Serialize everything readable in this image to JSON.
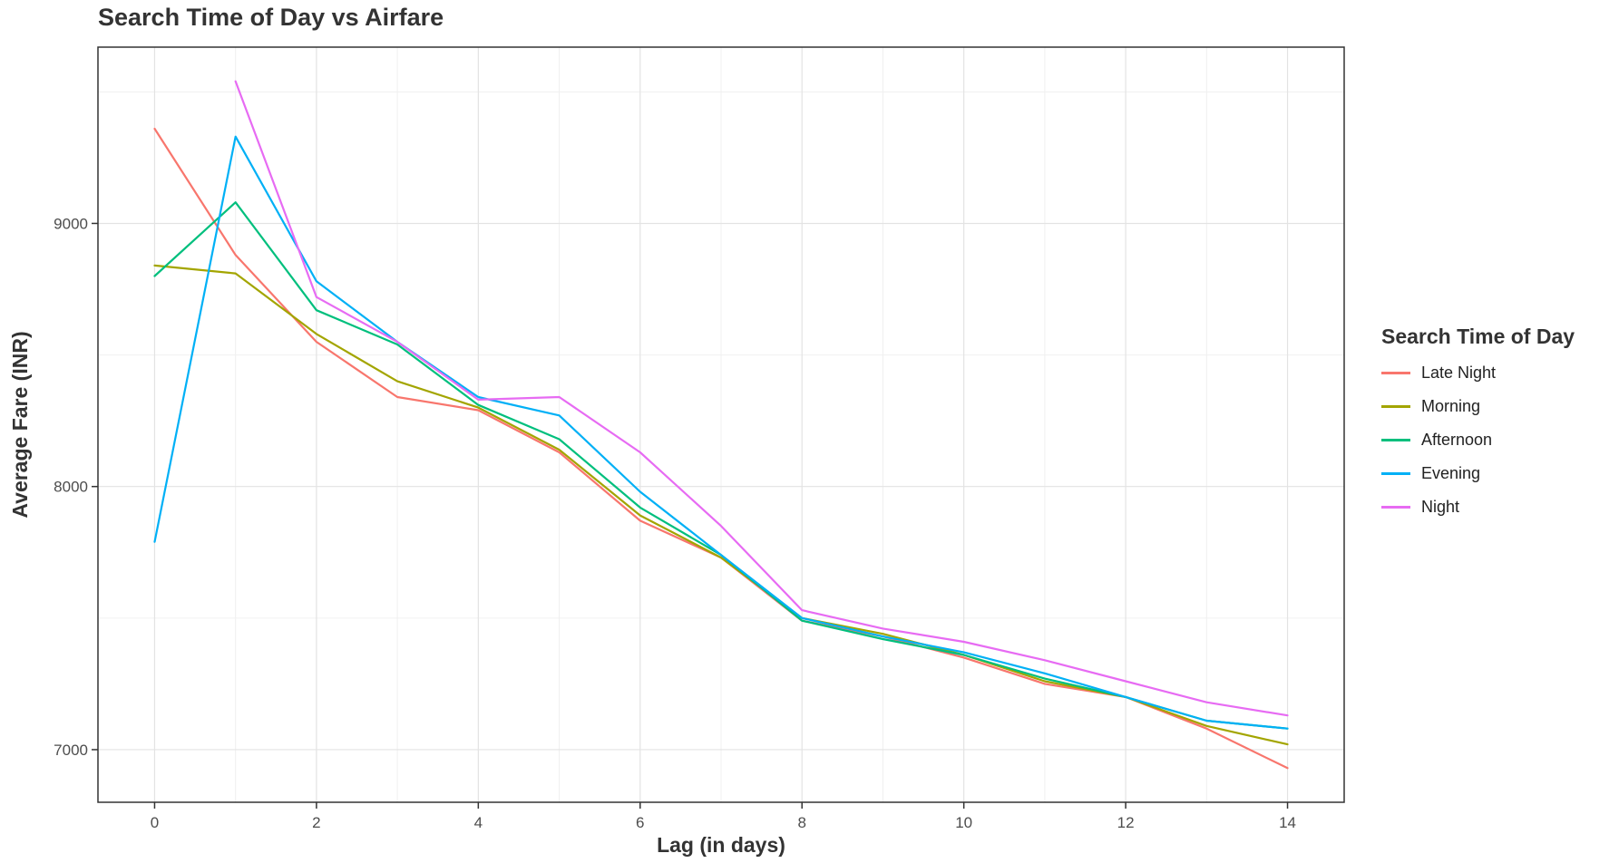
{
  "chart_data": {
    "type": "line",
    "title": "Search Time of Day vs Airfare",
    "xlabel": "Lag (in days)",
    "ylabel": "Average Fare (INR)",
    "xlim": [
      -0.7,
      14.7
    ],
    "ylim": [
      6800,
      9670
    ],
    "xticks": [
      0,
      2,
      4,
      6,
      8,
      10,
      12,
      14
    ],
    "xtick_labels": [
      "0",
      "2",
      "4",
      "6",
      "8",
      "10",
      "12",
      "14"
    ],
    "yticks": [
      7000,
      8000,
      9000
    ],
    "ytick_labels": [
      "7000",
      "8000",
      "9000"
    ],
    "grid": true,
    "legend_title": "Search Time of Day",
    "legend_position": "right",
    "x": [
      0,
      1,
      2,
      3,
      4,
      5,
      6,
      7,
      8,
      9,
      10,
      11,
      12,
      13,
      14
    ],
    "series": [
      {
        "name": "Late Night",
        "color": "#F8766D",
        "values": [
          9360,
          8880,
          8550,
          8340,
          8290,
          8130,
          7870,
          7730,
          7490,
          7430,
          7350,
          7250,
          7200,
          7080,
          6930
        ]
      },
      {
        "name": "Morning",
        "color": "#A3A500",
        "values": [
          8840,
          8810,
          8580,
          8400,
          8300,
          8140,
          7890,
          7730,
          7500,
          7440,
          7360,
          7260,
          7200,
          7090,
          7020
        ]
      },
      {
        "name": "Afternoon",
        "color": "#00BF7D",
        "values": [
          8800,
          9080,
          8670,
          8540,
          8310,
          8180,
          7920,
          7740,
          7490,
          7420,
          7360,
          7270,
          7200,
          7110,
          7080
        ]
      },
      {
        "name": "Evening",
        "color": "#00B0F6",
        "values": [
          7790,
          9330,
          8780,
          8550,
          8340,
          8270,
          7980,
          7740,
          7500,
          7430,
          7370,
          7290,
          7200,
          7110,
          7080
        ]
      },
      {
        "name": "Night",
        "color": "#E76BF3",
        "values": [
          null,
          9540,
          8720,
          8550,
          8330,
          8340,
          8130,
          7850,
          7530,
          7460,
          7410,
          7340,
          7260,
          7180,
          7130
        ]
      }
    ]
  }
}
